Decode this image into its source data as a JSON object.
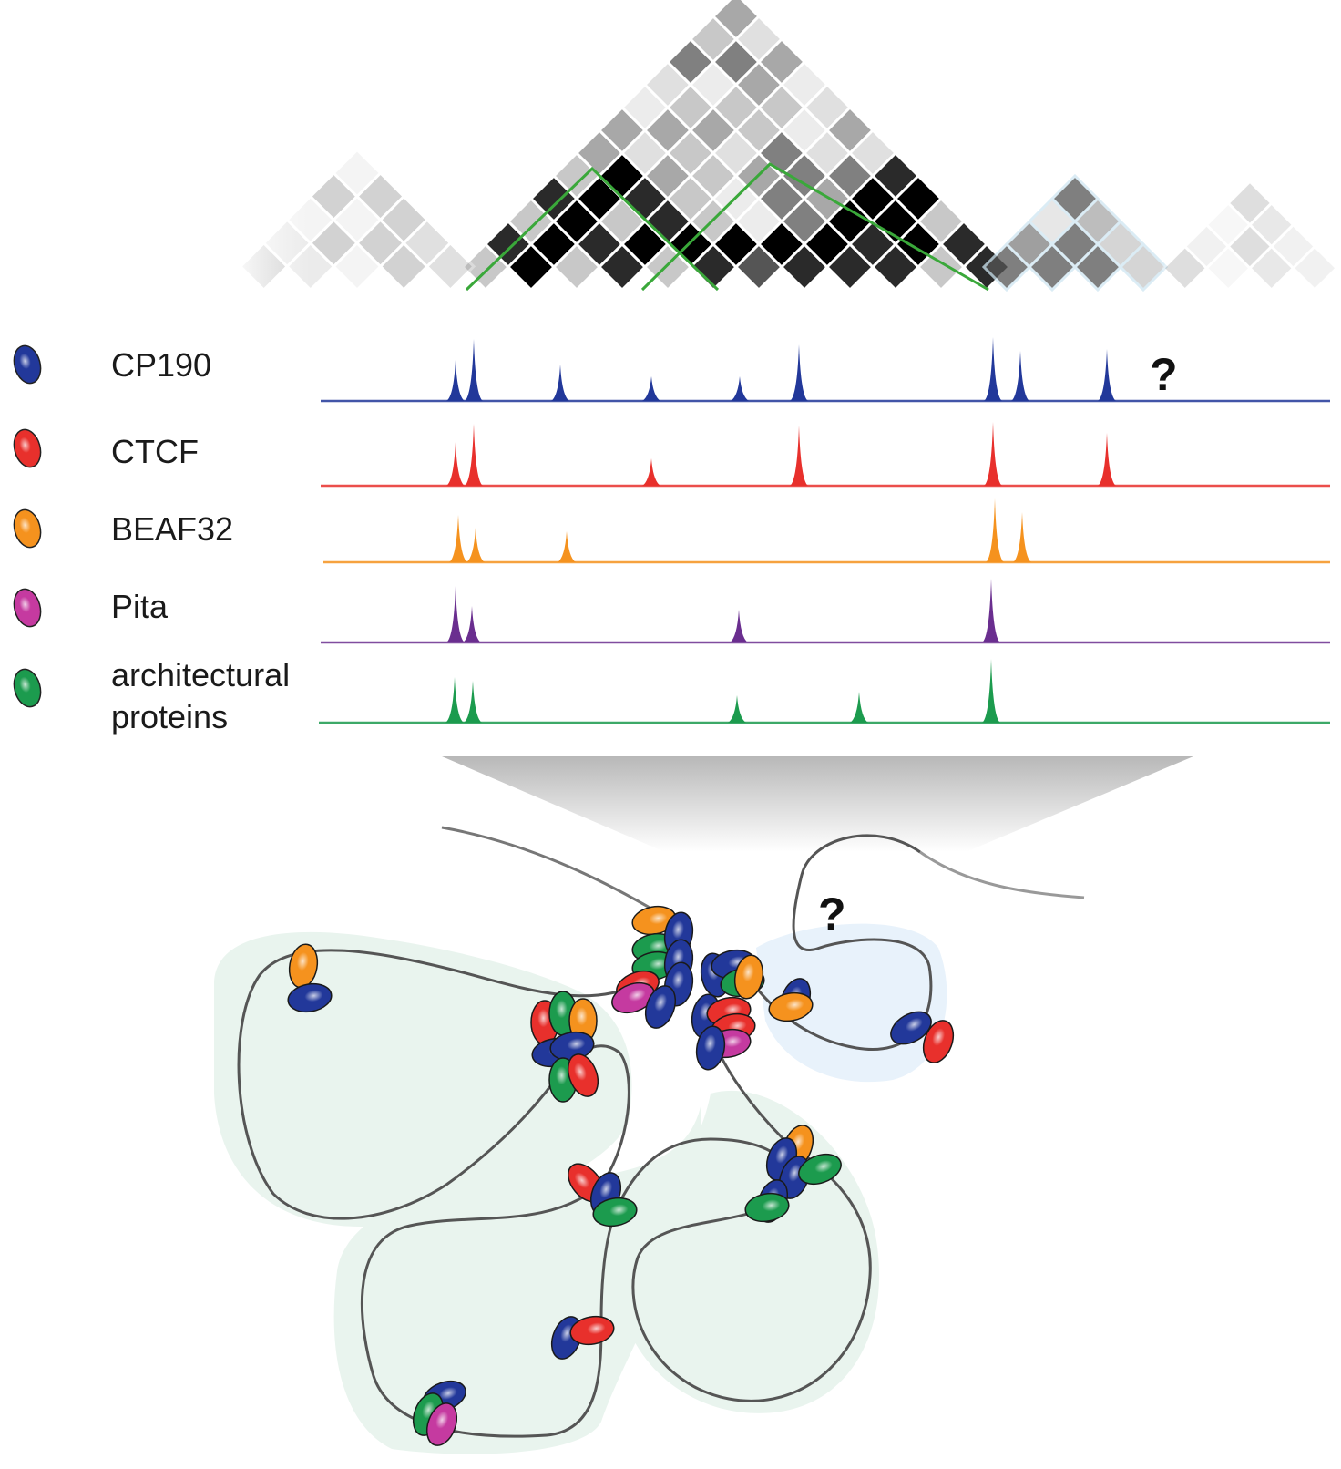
{
  "legend": [
    {
      "key": "cp190",
      "label": "CP190",
      "color": "#22389a"
    },
    {
      "key": "ctcf",
      "label": "CTCF",
      "color": "#e8302c"
    },
    {
      "key": "beaf32",
      "label": "BEAF32",
      "color": "#f5921e"
    },
    {
      "key": "pita",
      "label": "Pita",
      "color": "#6a2e8f"
    },
    {
      "key": "architectural",
      "label": "architectural\nproteins",
      "color": "#1c9b4e"
    }
  ],
  "annotations": {
    "track_question": "?",
    "loop_question": "?"
  },
  "colors": {
    "chromatin": "#555555",
    "tad_shade": "#e9f4ee",
    "unknown_shade": "#e8f2fb",
    "pita_marker": "#c53aa0",
    "highlight_grid": "#3aa83a"
  }
}
